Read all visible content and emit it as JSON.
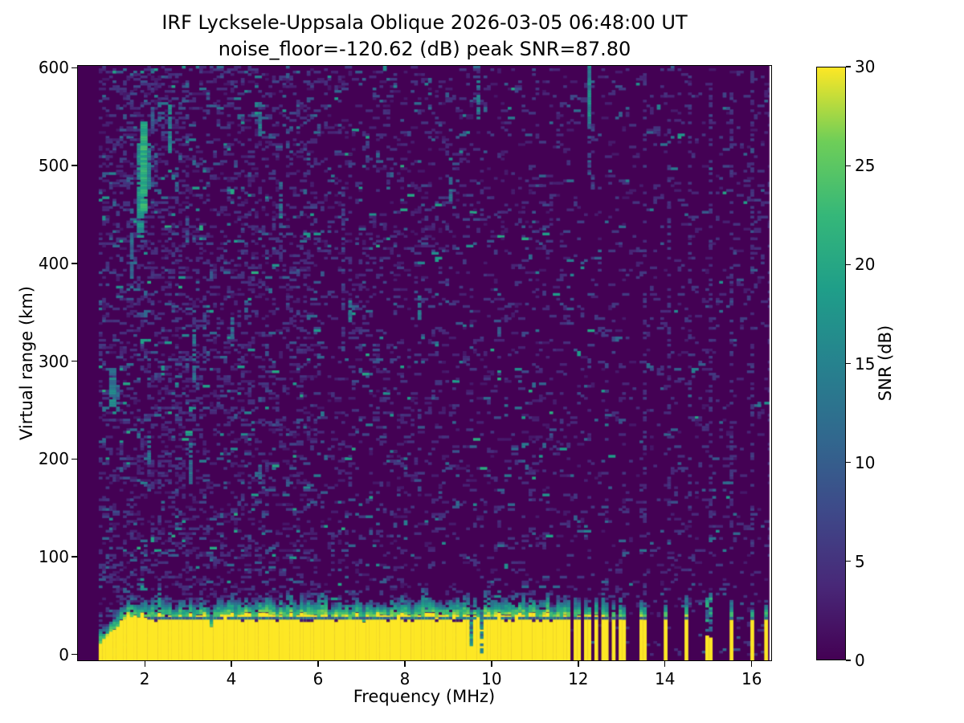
{
  "chart_data": {
    "type": "heatmap",
    "title": "IRF Lycksele-Uppsala Oblique 2026-03-05 06:48:00  UT",
    "subtitle": "noise_floor=-120.62 (dB) peak SNR=87.80",
    "xlabel": "Frequency (MHz)",
    "ylabel": "Virtual range (km)",
    "xlim": [
      0.46,
      16.45
    ],
    "ylim": [
      -6,
      602
    ],
    "xticks": [
      2,
      4,
      6,
      8,
      10,
      12,
      14,
      16
    ],
    "yticks": [
      0,
      100,
      200,
      300,
      400,
      500,
      600
    ],
    "grid": false,
    "noise_floor_db": -120.62,
    "peak_snr_db": 87.8,
    "colorbar": {
      "label": "SNR (dB)",
      "min": 0,
      "max": 30,
      "ticks": [
        0,
        5,
        10,
        15,
        20,
        25,
        30
      ],
      "colormap": "viridis"
    },
    "colormap_stops": [
      "#440154",
      "#482878",
      "#3e4989",
      "#31688e",
      "#26828e",
      "#1f9e89",
      "#35b779",
      "#6ece58",
      "#fde725"
    ],
    "features": {
      "data_f_range": [
        0.93,
        16.4
      ],
      "echo_band": {
        "f_start": 0.93,
        "f_end": 11.59,
        "ramp_end_f": 1.55,
        "ramp_start_km": 6,
        "yellow_top_km": 36,
        "cap_km": 15,
        "teal_line_km": 39,
        "dark_line_km": 35
      },
      "cap_bumps": [
        {
          "f": 2.35,
          "h": 9
        },
        {
          "f": 5.3,
          "h": 11
        },
        {
          "f": 6.05,
          "h": 7
        },
        {
          "f": 8.45,
          "h": 16
        },
        {
          "f": 9.85,
          "h": 13
        },
        {
          "f": 10.7,
          "h": 9
        }
      ],
      "notches": [
        {
          "f": 3.55,
          "w": 0.07,
          "top": 30
        },
        {
          "f": 4.78,
          "w": 0.06,
          "top": 31
        },
        {
          "f": 7.08,
          "w": 0.05,
          "top": 32
        },
        {
          "f": 9.52,
          "w": 0.1,
          "top": 14,
          "teal": true
        },
        {
          "f": 9.78,
          "w": 0.06,
          "top": 24,
          "teal": true
        },
        {
          "f": 11.08,
          "w": 0.05,
          "top": 32
        }
      ],
      "stripes": [
        {
          "f": 11.74,
          "w": 0.16
        },
        {
          "f": 11.98,
          "w": 0.13
        },
        {
          "f": 12.2,
          "w": 0.13
        },
        {
          "f": 12.42,
          "w": 0.13
        },
        {
          "f": 12.62,
          "w": 0.13
        },
        {
          "f": 12.82,
          "w": 0.13
        },
        {
          "f": 13.01,
          "w": 0.13
        },
        {
          "f": 13.5,
          "w": 0.1
        },
        {
          "f": 14.02,
          "w": 0.1
        },
        {
          "f": 14.52,
          "w": 0.1
        },
        {
          "f": 15.02,
          "w": 0.1,
          "partial": true
        },
        {
          "f": 15.52,
          "w": 0.1
        },
        {
          "f": 16.0,
          "w": 0.1
        },
        {
          "f": 16.35,
          "w": 0.1
        }
      ],
      "streaks": [
        {
          "f": 1.15,
          "km": [
            255,
            292
          ],
          "v": 14,
          "w": 2,
          "d": 0.85
        },
        {
          "f": 1.3,
          "km": [
            250,
            276
          ],
          "v": 10,
          "w": 1,
          "d": 0.8
        },
        {
          "f": 1.62,
          "km": [
            388,
            428
          ],
          "v": 11,
          "w": 1,
          "d": 0.8
        },
        {
          "f": 1.78,
          "km": [
            430,
            522
          ],
          "v": 17,
          "w": 2,
          "d": 0.9
        },
        {
          "f": 1.92,
          "km": [
            455,
            548
          ],
          "v": 21,
          "w": 2,
          "d": 0.95
        },
        {
          "f": 2.03,
          "km": [
            478,
            522
          ],
          "v": 14,
          "w": 1,
          "d": 0.85
        },
        {
          "f": 2.14,
          "km": [
            538,
            566
          ],
          "v": 10,
          "w": 1,
          "d": 0.7
        },
        {
          "f": 2.02,
          "km": [
            200,
            225
          ],
          "v": 11,
          "w": 1,
          "d": 0.7
        },
        {
          "f": 2.55,
          "km": [
            516,
            562
          ],
          "v": 15,
          "w": 1,
          "d": 0.8
        },
        {
          "f": 2.72,
          "km": [
            478,
            506
          ],
          "v": 9,
          "w": 1,
          "d": 0.6
        },
        {
          "f": 3.02,
          "km": [
            178,
            216
          ],
          "v": 12,
          "w": 1,
          "d": 0.7
        },
        {
          "f": 2.95,
          "km": [
            424,
            462
          ],
          "v": 10,
          "w": 1,
          "d": 0.6
        },
        {
          "f": 3.07,
          "km": [
            278,
            332
          ],
          "v": 12,
          "w": 1,
          "d": 0.65
        },
        {
          "f": 3.35,
          "km": [
            298,
            362
          ],
          "v": 8,
          "w": 1,
          "d": 0.5
        },
        {
          "f": 3.78,
          "km": [
            388,
            426
          ],
          "v": 9,
          "w": 1,
          "d": 0.55
        },
        {
          "f": 4.0,
          "km": [
            318,
            348
          ],
          "v": 11,
          "w": 1,
          "d": 0.6
        },
        {
          "f": 4.6,
          "km": [
            528,
            554
          ],
          "v": 13,
          "w": 1,
          "d": 0.8
        },
        {
          "f": 4.62,
          "km": [
            176,
            202
          ],
          "v": 10,
          "w": 1,
          "d": 0.6
        },
        {
          "f": 5.06,
          "km": [
            452,
            484
          ],
          "v": 11,
          "w": 1,
          "d": 0.65
        },
        {
          "f": 6.52,
          "km": [
            312,
            482
          ],
          "v": 6,
          "w": 1,
          "d": 0.45
        },
        {
          "f": 6.72,
          "km": [
            342,
            364
          ],
          "v": 13,
          "w": 1,
          "d": 0.8
        },
        {
          "f": 8.32,
          "km": [
            346,
            366
          ],
          "v": 12,
          "w": 1,
          "d": 0.8
        },
        {
          "f": 8.55,
          "km": [
            560,
            596
          ],
          "v": 9,
          "w": 1,
          "d": 0.4
        },
        {
          "f": 9.02,
          "km": [
            460,
            488
          ],
          "v": 11,
          "w": 1,
          "d": 0.7
        },
        {
          "f": 9.62,
          "km": [
            548,
            594
          ],
          "v": 13,
          "w": 1,
          "d": 0.7
        },
        {
          "f": 10.15,
          "km": [
            318,
            336
          ],
          "v": 9,
          "w": 1,
          "d": 0.6
        },
        {
          "f": 12.19,
          "km": [
            545,
            602
          ],
          "v": 15,
          "w": 1,
          "d": 1.0
        },
        {
          "f": 12.19,
          "km": [
            492,
            545
          ],
          "v": 8,
          "w": 1,
          "d": 0.5
        },
        {
          "f": 12.31,
          "km": [
            478,
            556
          ],
          "v": 6,
          "w": 1,
          "d": 0.35
        }
      ],
      "sparse_columns": [
        {
          "f": 13.5,
          "km": [
            62,
            600
          ],
          "v": 5,
          "d": 0.2
        },
        {
          "f": 14.02,
          "km": [
            62,
            600
          ],
          "v": 5,
          "d": 0.22
        },
        {
          "f": 14.52,
          "km": [
            62,
            600
          ],
          "v": 5,
          "d": 0.2
        },
        {
          "f": 15.02,
          "km": [
            62,
            600
          ],
          "v": 5,
          "d": 0.2
        },
        {
          "f": 15.52,
          "km": [
            62,
            600
          ],
          "v": 5,
          "d": 0.2
        },
        {
          "f": 16.0,
          "km": [
            62,
            600
          ],
          "v": 5,
          "d": 0.22
        },
        {
          "f": 16.35,
          "km": [
            62,
            600
          ],
          "v": 4,
          "d": 0.15
        },
        {
          "f": 11.74,
          "km": [
            60,
            280
          ],
          "v": 4,
          "d": 0.12
        },
        {
          "f": 12.2,
          "km": [
            60,
            280
          ],
          "v": 4,
          "d": 0.12
        },
        {
          "f": 12.62,
          "km": [
            60,
            280
          ],
          "v": 4,
          "d": 0.12
        },
        {
          "f": 13.01,
          "km": [
            60,
            280
          ],
          "v": 4,
          "d": 0.12
        }
      ],
      "speckle_bands": [
        {
          "f": [
            0.95,
            3.0
          ],
          "d": 0.22
        },
        {
          "f": [
            3.0,
            6.0
          ],
          "d": 0.18
        },
        {
          "f": [
            6.0,
            9.0
          ],
          "d": 0.12
        },
        {
          "f": [
            9.0,
            11.7
          ],
          "d": 0.09
        },
        {
          "f": [
            11.7,
            16.4
          ],
          "d": 0.06
        }
      ]
    }
  }
}
